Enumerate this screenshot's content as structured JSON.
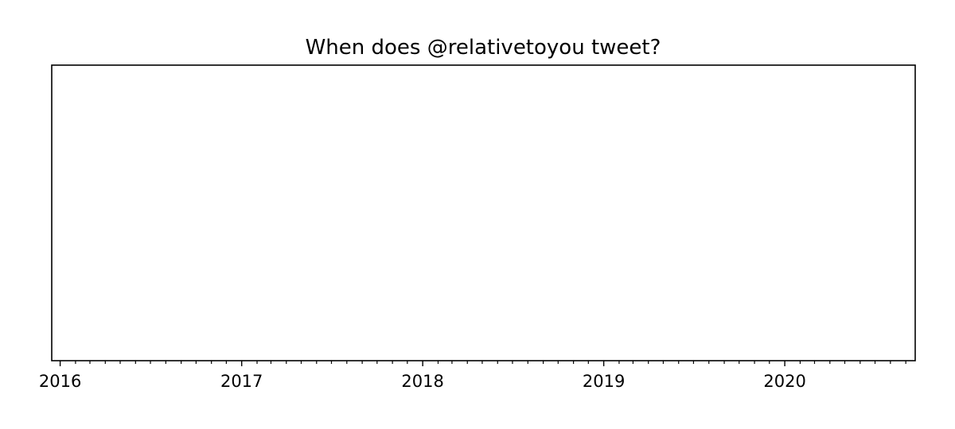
{
  "chart_data": {
    "type": "scatter",
    "title": "When does @relativetoyou tweet?",
    "xlabel": "",
    "ylabel": "",
    "x_axis": {
      "type": "date",
      "range": [
        "2015-12-15",
        "2020-09-20"
      ],
      "major_ticks": [
        {
          "date": "2016-01-01",
          "label": "2016"
        },
        {
          "date": "2017-01-01",
          "label": "2017"
        },
        {
          "date": "2018-01-01",
          "label": "2018"
        },
        {
          "date": "2019-01-01",
          "label": "2019"
        },
        {
          "date": "2020-01-01",
          "label": "2020"
        }
      ],
      "minor_ticks": "monthly"
    },
    "y_axis": {
      "visible": false
    },
    "series": [],
    "grid": false,
    "legend": "none"
  }
}
